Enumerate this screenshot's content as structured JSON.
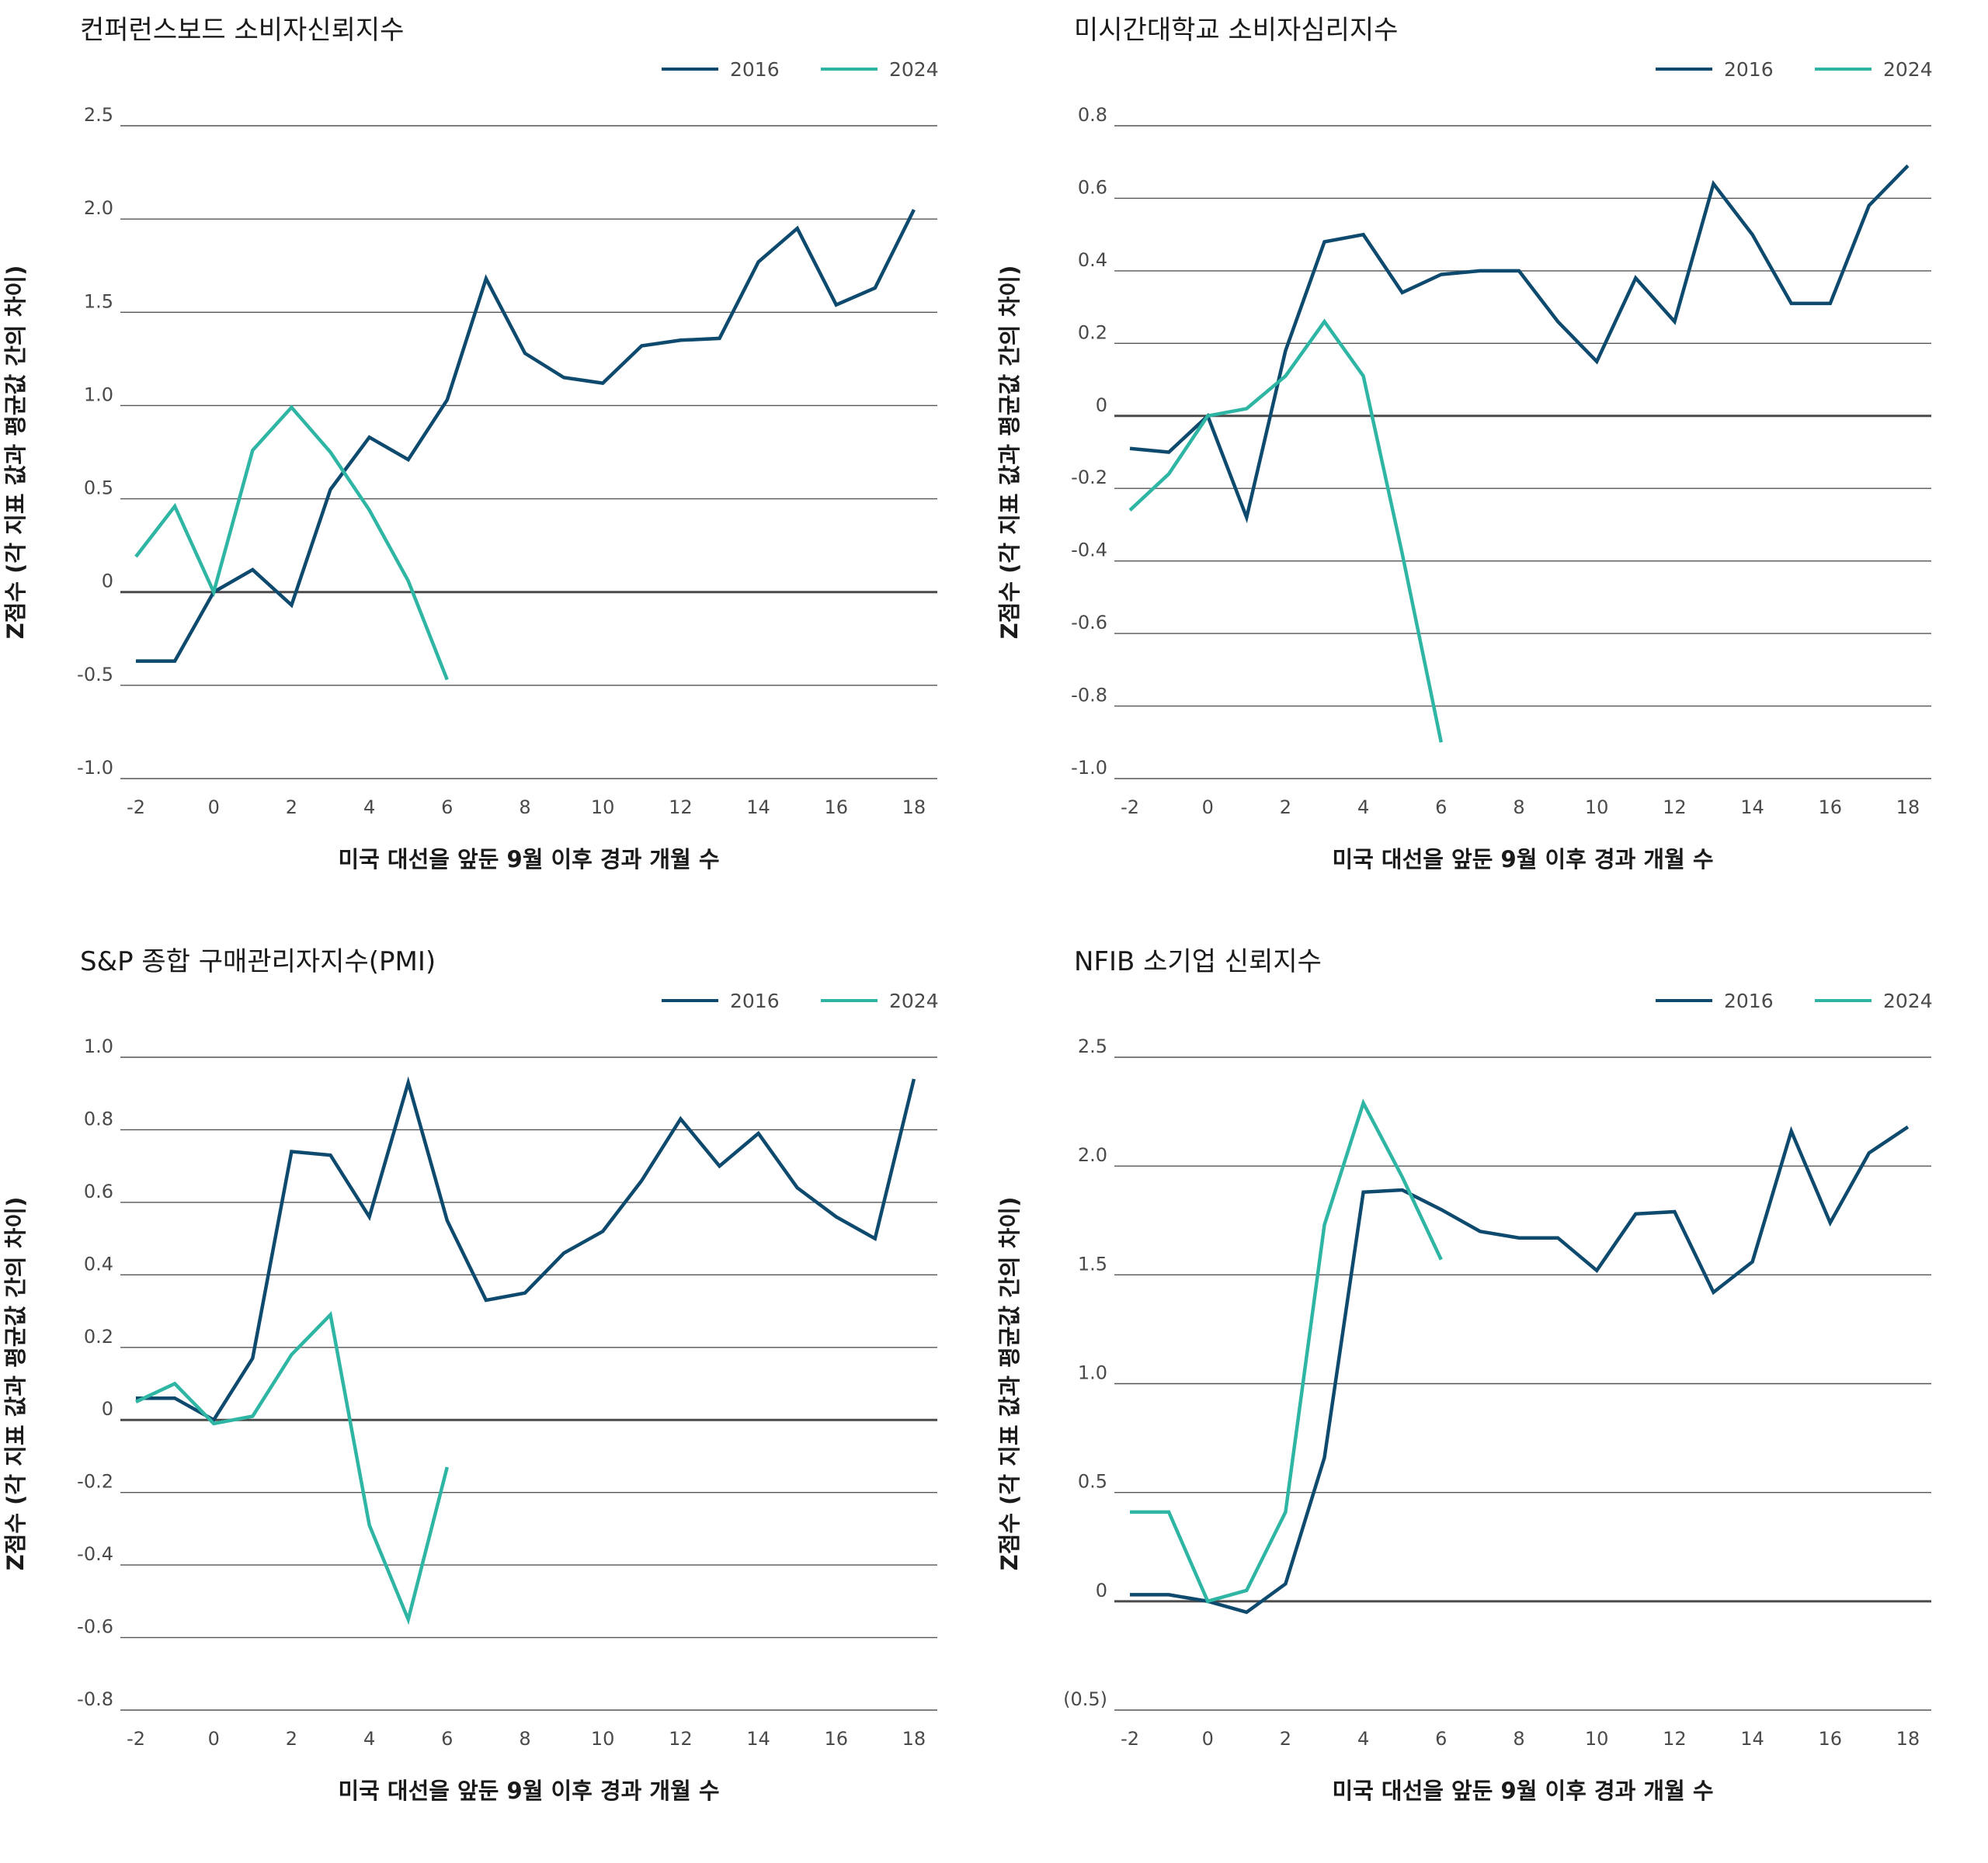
{
  "colors": {
    "s2016": "#0d4a6e",
    "s2024": "#2fb5a4"
  },
  "chart_data": [
    {
      "type": "line",
      "title": "컨퍼런스보드 소비자신뢰지수",
      "xlabel": "미국 대선을 앞둔 9월 이후 경과 개월 수",
      "ylabel": "Z점수 (각 지표 값과 평균값 간의 차이)",
      "xlim": [
        -2.4,
        18.6
      ],
      "ylim": [
        -1.0,
        2.5
      ],
      "yticks": [
        2.5,
        2.0,
        1.5,
        1.0,
        0.5,
        0,
        -0.5,
        -1.0
      ],
      "ytick_labels": [
        "2.5",
        "2.0",
        "1.5",
        "1.0",
        "0.5",
        "0",
        "-0.5",
        "-1.0"
      ],
      "xticks": [
        -2,
        0,
        2,
        4,
        6,
        8,
        10,
        12,
        14,
        16,
        18
      ],
      "xtick_labels": [
        "-2",
        "0",
        "2",
        "4",
        "6",
        "8",
        "10",
        "12",
        "14",
        "16",
        "18"
      ],
      "legend": [
        "2016",
        "2024"
      ],
      "series": [
        {
          "name": "2016",
          "x": [
            -2,
            -1,
            0,
            1,
            2,
            3,
            4,
            5,
            6,
            7,
            8,
            9,
            10,
            11,
            12,
            13,
            14,
            15,
            16,
            17,
            18
          ],
          "y": [
            -0.37,
            -0.37,
            0.0,
            0.12,
            -0.07,
            0.55,
            0.83,
            0.71,
            1.03,
            1.68,
            1.28,
            1.15,
            1.12,
            1.32,
            1.35,
            1.36,
            1.77,
            1.95,
            1.54,
            1.63,
            2.05
          ]
        },
        {
          "name": "2024",
          "x": [
            -2,
            -1,
            0,
            1,
            2,
            3,
            4,
            5,
            6
          ],
          "y": [
            0.19,
            0.46,
            0.0,
            0.76,
            0.99,
            0.75,
            0.44,
            0.06,
            -0.47
          ]
        }
      ]
    },
    {
      "type": "line",
      "title": "미시간대학교 소비자심리지수",
      "xlabel": "미국 대선을 앞둔 9월 이후 경과 개월 수",
      "ylabel": "Z점수 (각 지표 값과 평균값 간의 차이)",
      "xlim": [
        -2.4,
        18.6
      ],
      "ylim": [
        -1.0,
        0.8
      ],
      "yticks": [
        0.8,
        0.6,
        0.4,
        0.2,
        0,
        -0.2,
        -0.4,
        -0.6,
        -0.8,
        -1.0
      ],
      "ytick_labels": [
        "0.8",
        "0.6",
        "0.4",
        "0.2",
        "0",
        "-0.2",
        "-0.4",
        "-0.6",
        "-0.8",
        "-1.0"
      ],
      "xticks": [
        -2,
        0,
        2,
        4,
        6,
        8,
        10,
        12,
        14,
        16,
        18
      ],
      "xtick_labels": [
        "-2",
        "0",
        "2",
        "4",
        "6",
        "8",
        "10",
        "12",
        "14",
        "16",
        "18"
      ],
      "legend": [
        "2016",
        "2024"
      ],
      "series": [
        {
          "name": "2016",
          "x": [
            -2,
            -1,
            0,
            1,
            2,
            3,
            4,
            5,
            6,
            7,
            8,
            9,
            10,
            11,
            12,
            13,
            14,
            15,
            16,
            17,
            18
          ],
          "y": [
            -0.09,
            -0.1,
            0.0,
            -0.28,
            0.18,
            0.48,
            0.5,
            0.34,
            0.39,
            0.4,
            0.4,
            0.26,
            0.15,
            0.38,
            0.26,
            0.64,
            0.5,
            0.31,
            0.31,
            0.58,
            0.69
          ]
        },
        {
          "name": "2024",
          "x": [
            -2,
            -1,
            0,
            1,
            2,
            3,
            4,
            5,
            6
          ],
          "y": [
            -0.26,
            -0.16,
            0.0,
            0.02,
            0.11,
            0.26,
            0.11,
            -0.38,
            -0.9
          ]
        }
      ]
    },
    {
      "type": "line",
      "title": "S&P 종합 구매관리자지수(PMI)",
      "xlabel": "미국 대선을 앞둔 9월 이후 경과 개월 수",
      "ylabel": "Z점수 (각 지표 값과 평균값 간의 차이)",
      "xlim": [
        -2.4,
        18.6
      ],
      "ylim": [
        -0.8,
        1.0
      ],
      "yticks": [
        1.0,
        0.8,
        0.6,
        0.4,
        0.2,
        0,
        -0.2,
        -0.4,
        -0.6,
        -0.8
      ],
      "ytick_labels": [
        "1.0",
        "0.8",
        "0.6",
        "0.4",
        "0.2",
        "0",
        "-0.2",
        "-0.4",
        "-0.6",
        "-0.8"
      ],
      "xticks": [
        -2,
        0,
        2,
        4,
        6,
        8,
        10,
        12,
        14,
        16,
        18
      ],
      "xtick_labels": [
        "-2",
        "0",
        "2",
        "4",
        "6",
        "8",
        "10",
        "12",
        "14",
        "16",
        "18"
      ],
      "legend": [
        "2016",
        "2024"
      ],
      "series": [
        {
          "name": "2016",
          "x": [
            -2,
            -1,
            0,
            1,
            2,
            3,
            4,
            5,
            6,
            7,
            8,
            9,
            10,
            11,
            12,
            13,
            14,
            15,
            16,
            17,
            18
          ],
          "y": [
            0.06,
            0.06,
            0.0,
            0.17,
            0.74,
            0.73,
            0.56,
            0.93,
            0.55,
            0.33,
            0.35,
            0.46,
            0.52,
            0.66,
            0.83,
            0.7,
            0.79,
            0.64,
            0.56,
            0.5,
            0.94
          ]
        },
        {
          "name": "2024",
          "x": [
            -2,
            -1,
            0,
            1,
            2,
            3,
            4,
            5,
            6
          ],
          "y": [
            0.05,
            0.1,
            -0.01,
            0.01,
            0.18,
            0.29,
            -0.29,
            -0.55,
            -0.13
          ]
        }
      ]
    },
    {
      "type": "line",
      "title": "NFIB 소기업 신뢰지수",
      "xlabel": "미국 대선을 앞둔 9월 이후 경과 개월 수",
      "ylabel": "Z점수 (각 지표 값과 평균값 간의 차이)",
      "xlim": [
        -2.4,
        18.6
      ],
      "ylim": [
        -0.5,
        2.5
      ],
      "yticks": [
        2.5,
        2.0,
        1.5,
        1.0,
        0.5,
        0,
        -0.5
      ],
      "ytick_labels": [
        "2.5",
        "2.0",
        "1.5",
        "1.0",
        "0.5",
        "0",
        "(0.5)"
      ],
      "xticks": [
        -2,
        0,
        2,
        4,
        6,
        8,
        10,
        12,
        14,
        16,
        18
      ],
      "xtick_labels": [
        "-2",
        "0",
        "2",
        "4",
        "6",
        "8",
        "10",
        "12",
        "14",
        "16",
        "18"
      ],
      "legend": [
        "2016",
        "2024"
      ],
      "series": [
        {
          "name": "2016",
          "x": [
            -2,
            -1,
            0,
            1,
            2,
            3,
            4,
            5,
            6,
            7,
            8,
            9,
            10,
            11,
            12,
            13,
            14,
            15,
            16,
            17,
            18
          ],
          "y": [
            0.03,
            0.03,
            0.0,
            -0.05,
            0.08,
            0.66,
            1.88,
            1.89,
            1.8,
            1.7,
            1.67,
            1.67,
            1.52,
            1.78,
            1.79,
            1.42,
            1.56,
            2.16,
            1.74,
            2.06,
            2.18
          ]
        },
        {
          "name": "2024",
          "x": [
            -2,
            -1,
            0,
            1,
            2,
            3,
            4,
            5,
            6
          ],
          "y": [
            0.41,
            0.41,
            0.0,
            0.05,
            0.41,
            1.73,
            2.29,
            1.95,
            1.57
          ]
        }
      ]
    }
  ]
}
